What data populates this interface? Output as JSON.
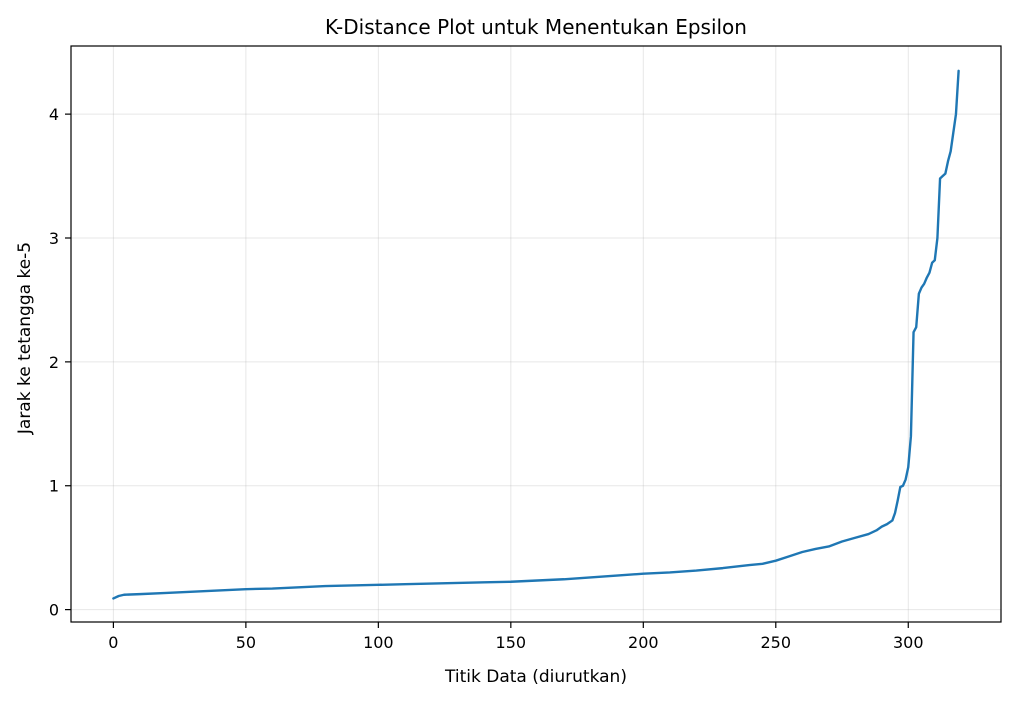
{
  "chart_data": {
    "type": "line",
    "title": "K-Distance Plot untuk Menentukan Epsilon",
    "xlabel": "Titik Data (diurutkan)",
    "ylabel": "Jarak ke tetangga ke-5",
    "xlim": [
      -16,
      335
    ],
    "ylim": [
      -0.1,
      4.55
    ],
    "xticks": [
      0,
      50,
      100,
      150,
      200,
      250,
      300
    ],
    "yticks": [
      0,
      1,
      2,
      3,
      4
    ],
    "grid": true,
    "series": [
      {
        "color": "#1f77b4",
        "points": [
          [
            0,
            0.09
          ],
          [
            2,
            0.11
          ],
          [
            4,
            0.12
          ],
          [
            10,
            0.125
          ],
          [
            20,
            0.135
          ],
          [
            30,
            0.145
          ],
          [
            40,
            0.155
          ],
          [
            50,
            0.165
          ],
          [
            60,
            0.17
          ],
          [
            70,
            0.18
          ],
          [
            80,
            0.19
          ],
          [
            90,
            0.195
          ],
          [
            100,
            0.2
          ],
          [
            110,
            0.205
          ],
          [
            120,
            0.21
          ],
          [
            130,
            0.215
          ],
          [
            140,
            0.22
          ],
          [
            150,
            0.225
          ],
          [
            160,
            0.235
          ],
          [
            170,
            0.245
          ],
          [
            180,
            0.26
          ],
          [
            190,
            0.275
          ],
          [
            200,
            0.29
          ],
          [
            210,
            0.3
          ],
          [
            220,
            0.315
          ],
          [
            230,
            0.335
          ],
          [
            240,
            0.36
          ],
          [
            245,
            0.37
          ],
          [
            250,
            0.395
          ],
          [
            255,
            0.43
          ],
          [
            260,
            0.465
          ],
          [
            265,
            0.49
          ],
          [
            270,
            0.51
          ],
          [
            275,
            0.55
          ],
          [
            280,
            0.58
          ],
          [
            285,
            0.61
          ],
          [
            288,
            0.64
          ],
          [
            290,
            0.67
          ],
          [
            292,
            0.69
          ],
          [
            294,
            0.72
          ],
          [
            295,
            0.78
          ],
          [
            296,
            0.88
          ],
          [
            297,
            0.99
          ],
          [
            298,
            1.0
          ],
          [
            299,
            1.05
          ],
          [
            300,
            1.15
          ],
          [
            301,
            1.4
          ],
          [
            302,
            2.24
          ],
          [
            303,
            2.28
          ],
          [
            304,
            2.55
          ],
          [
            305,
            2.6
          ],
          [
            306,
            2.63
          ],
          [
            307,
            2.68
          ],
          [
            308,
            2.72
          ],
          [
            309,
            2.8
          ],
          [
            310,
            2.82
          ],
          [
            311,
            3.0
          ],
          [
            312,
            3.48
          ],
          [
            313,
            3.5
          ],
          [
            314,
            3.52
          ],
          [
            315,
            3.62
          ],
          [
            316,
            3.7
          ],
          [
            317,
            3.85
          ],
          [
            318,
            4.0
          ],
          [
            319,
            4.35
          ]
        ]
      }
    ]
  }
}
